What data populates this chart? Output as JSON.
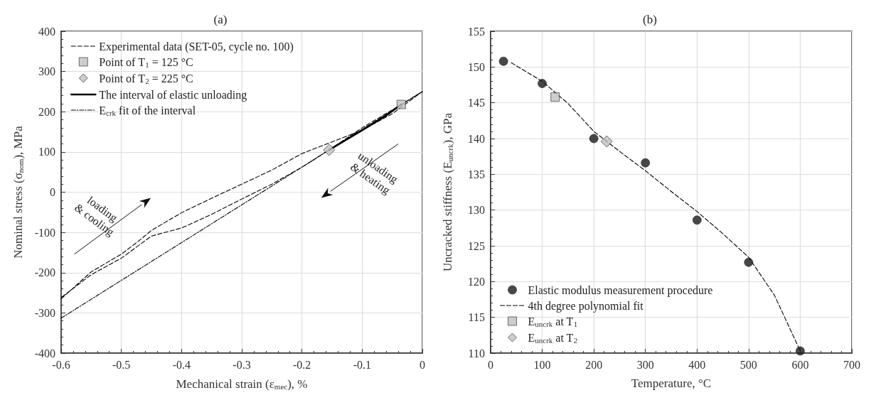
{
  "chart_data": [
    {
      "type": "line",
      "title": "(a)",
      "xlabel": "Mechanical strain (ε$_{mec}$), %",
      "ylabel": "Nominal stress (σ$_{nom}$), MPa",
      "xlim": [
        -0.6,
        0
      ],
      "xticks": [
        -0.6,
        -0.5,
        -0.4,
        -0.3,
        -0.2,
        -0.1,
        0
      ],
      "ylim": [
        -400,
        400
      ],
      "yticks": [
        -400,
        -300,
        -200,
        -100,
        0,
        100,
        200,
        300,
        400
      ],
      "grid": true,
      "legend": "top left",
      "annotations": [
        "loading\n& cooling",
        "unloading\n& heating"
      ],
      "series": [
        {
          "name": "Experimental data (SET-05, cycle no. 100)",
          "line_style": "dashed",
          "marker": "none",
          "color": "#000000",
          "x": [
            -0.6,
            -0.55,
            -0.5,
            -0.47,
            -0.45,
            -0.4,
            -0.35,
            -0.3,
            -0.25,
            -0.2,
            -0.15,
            -0.1,
            -0.05,
            0,
            -0.035,
            -0.1,
            -0.155,
            -0.2,
            -0.25,
            -0.3,
            -0.35,
            -0.4,
            -0.45,
            -0.5,
            -0.55,
            -0.6
          ],
          "values": [
            -265,
            -198,
            -154,
            -120,
            -95,
            -51,
            -15,
            20,
            55,
            96,
            125,
            154,
            195,
            250,
            218,
            160,
            105,
            62,
            20,
            -17,
            -55,
            -89,
            -109,
            -164,
            -205,
            -262
          ]
        },
        {
          "name": "Point of T$_{1}$ = 125 °C",
          "type": "scatter",
          "marker": "square",
          "color": "#c0c0c0",
          "x": [
            -0.035
          ],
          "values": [
            218
          ]
        },
        {
          "name": "Point of T$_{2}$ = 225 °C",
          "type": "scatter",
          "marker": "diamond",
          "color": "#c0c0c0",
          "x": [
            -0.155
          ],
          "values": [
            105
          ]
        },
        {
          "name": "The interval of elastic unloading",
          "line_style": "solid",
          "marker": "none",
          "color": "#000000",
          "x": [
            -0.155,
            -0.12,
            -0.09,
            -0.06,
            -0.035
          ],
          "values": [
            105,
            136,
            163,
            191,
            218
          ]
        },
        {
          "name": "E$_{crk}$ fit of the interval",
          "line_style": "dotted",
          "marker": "none",
          "color": "#000000",
          "x": [
            -0.6,
            0
          ],
          "values": [
            -313,
            250
          ]
        }
      ]
    },
    {
      "type": "scatter",
      "title": "(b)",
      "xlabel": "Temperature, °C",
      "ylabel": "Uncracked stiffness (E$_{uncrk}$), GPa",
      "xlim": [
        0,
        700
      ],
      "xticks": [
        0,
        100,
        200,
        300,
        400,
        500,
        600,
        700
      ],
      "ylim": [
        110,
        155
      ],
      "yticks": [
        110,
        115,
        120,
        125,
        130,
        135,
        140,
        145,
        150,
        155
      ],
      "grid": true,
      "legend": "bottom left",
      "series": [
        {
          "name": "Elastic modulus measurement procedure",
          "marker": "circle",
          "color": "#1a1a1a",
          "x": [
            25,
            100,
            200,
            300,
            400,
            500,
            600
          ],
          "values": [
            150.8,
            147.7,
            140,
            136.6,
            128.6,
            122.7,
            110.3
          ]
        },
        {
          "name": "4th degree polynomial fit",
          "type": "line",
          "line_style": "dashed",
          "marker": "none",
          "color": "#000000",
          "x": [
            40,
            100,
            150,
            200,
            250,
            300,
            350,
            400,
            450,
            500,
            550,
            600
          ],
          "values": [
            150.6,
            148,
            144.9,
            141,
            138.2,
            135.5,
            132.6,
            129.8,
            126.7,
            123.4,
            118.1,
            110.3
          ]
        },
        {
          "name": "E$_{uncrk}$ at T$_{1}$",
          "marker": "square",
          "color": "#c0c0c0",
          "x": [
            125
          ],
          "values": [
            145.8
          ]
        },
        {
          "name": "E$_{uncrk}$ at T$_{2}$",
          "marker": "diamond",
          "color": "#c0c0c0",
          "x": [
            225
          ],
          "values": [
            139.6
          ]
        }
      ]
    }
  ]
}
